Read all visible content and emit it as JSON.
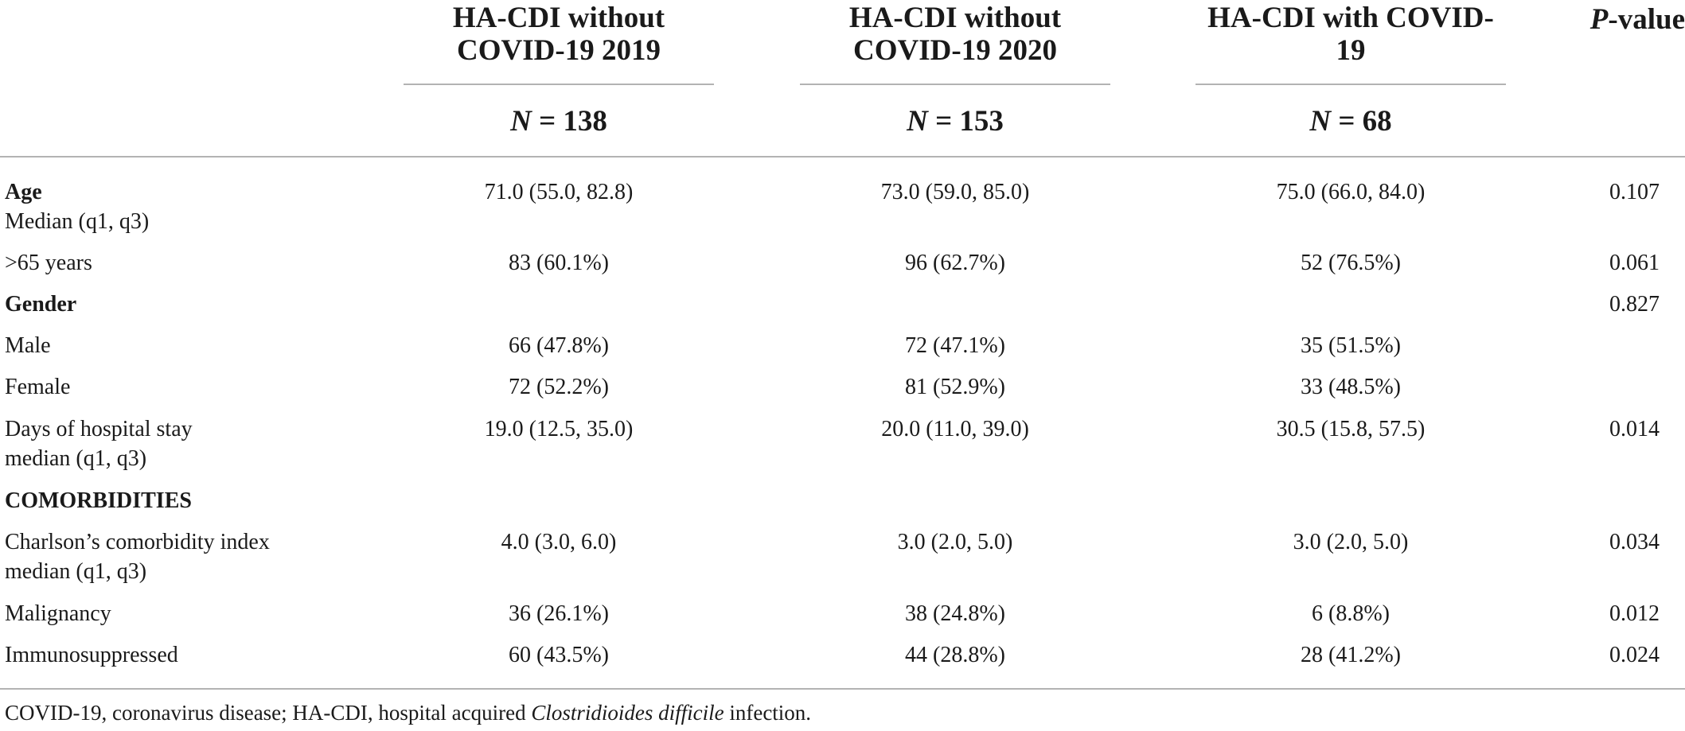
{
  "table": {
    "columns": [
      {
        "title": "HA-CDI without\nCOVID-19 2019",
        "n_var": "N",
        "n_value": " = 138"
      },
      {
        "title": "HA-CDI without\nCOVID-19 2020",
        "n_var": "N",
        "n_value": " = 153"
      },
      {
        "title": "HA-CDI with COVID-19",
        "n_var": "N",
        "n_value": " = 68"
      }
    ],
    "pvalue_header": {
      "italic": "P",
      "rest": "-value"
    },
    "rows": [
      {
        "label": "Age",
        "sublabel": "Median (q1, q3)",
        "values": [
          "71.0 (55.0, 82.8)",
          "73.0 (59.0, 85.0)",
          "75.0 (66.0, 84.0)"
        ],
        "p": "0.107"
      },
      {
        "label": ">65 years",
        "values": [
          "83 (60.1%)",
          "96 (62.7%)",
          "52 (76.5%)"
        ],
        "p": "0.061"
      },
      {
        "label": "Gender",
        "values": [
          "",
          "",
          ""
        ],
        "p": "0.827"
      },
      {
        "label": "Male",
        "values": [
          "66 (47.8%)",
          "72 (47.1%)",
          "35 (51.5%)"
        ],
        "p": ""
      },
      {
        "label": "Female",
        "values": [
          "72 (52.2%)",
          "81 (52.9%)",
          "33 (48.5%)"
        ],
        "p": ""
      },
      {
        "label": "Days of hospital stay",
        "sublabel": "median (q1, q3)",
        "values": [
          "19.0 (12.5, 35.0)",
          "20.0 (11.0, 39.0)",
          "30.5 (15.8, 57.5)"
        ],
        "p": "0.014"
      },
      {
        "label": "COMORBIDITIES",
        "values": [
          "",
          "",
          ""
        ],
        "p": ""
      },
      {
        "label": "Charlson’s comorbidity index",
        "sublabel": "median (q1, q3)",
        "values": [
          "4.0 (3.0, 6.0)",
          "3.0 (2.0, 5.0)",
          "3.0 (2.0, 5.0)"
        ],
        "p": "0.034"
      },
      {
        "label": "Malignancy",
        "values": [
          "36 (26.1%)",
          "38 (24.8%)",
          "6 (8.8%)"
        ],
        "p": "0.012"
      },
      {
        "label": "Immunosuppressed",
        "values": [
          "60 (43.5%)",
          "44 (28.8%)",
          "28 (41.2%)"
        ],
        "p": "0.024"
      }
    ]
  },
  "footnote": {
    "before": "COVID-19, coronavirus disease; HA-CDI, hospital acquired ",
    "italic": "Clostridioides difficile",
    "after": " infection."
  }
}
